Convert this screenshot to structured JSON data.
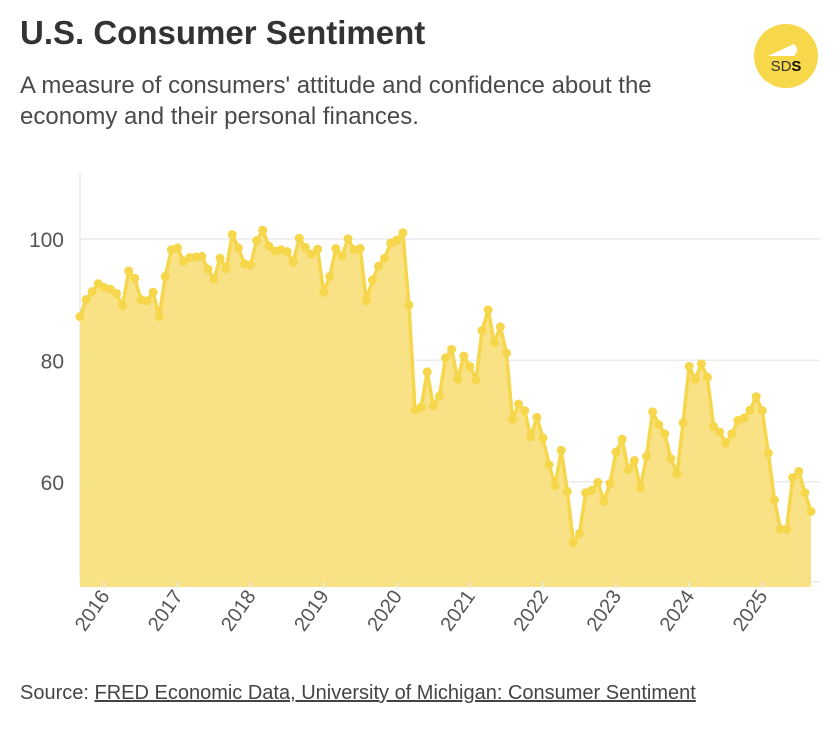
{
  "header": {
    "title": "U.S. Consumer Sentiment",
    "subtitle": "A measure of consumers' attitude and confidence about the economy and their personal finances.",
    "logo_text": "SDS"
  },
  "footer": {
    "source_prefix": "Source: ",
    "source_link": "FRED Economic Data, University of Michigan: Consumer Sentiment"
  },
  "colors": {
    "fill": "#f9e07f",
    "line": "#f6d64a",
    "grid": "#ebebeb",
    "logo": "#f7d84a"
  },
  "chart_data": {
    "type": "area",
    "title": "U.S. Consumer Sentiment",
    "xlabel": "",
    "ylabel": "",
    "frequency": "monthly",
    "start": "2015-09",
    "end": "2025-09",
    "x_ticks": [
      "2016",
      "2017",
      "2018",
      "2019",
      "2020",
      "2021",
      "2022",
      "2023",
      "2024",
      "2025"
    ],
    "y_ticks": [
      60,
      80,
      100
    ],
    "ylim": [
      43.5,
      111
    ],
    "grid": "horizontal",
    "legend": "none",
    "values": [
      87.2,
      90.0,
      91.3,
      92.6,
      92.0,
      91.7,
      91.0,
      89.0,
      94.7,
      93.5,
      90.0,
      89.8,
      91.2,
      87.2,
      93.8,
      98.2,
      98.5,
      96.3,
      96.9,
      97.0,
      97.1,
      95.0,
      93.4,
      96.8,
      95.1,
      100.7,
      98.5,
      95.9,
      95.7,
      99.7,
      101.4,
      98.8,
      98.0,
      98.2,
      97.9,
      96.2,
      100.1,
      98.6,
      97.5,
      98.3,
      91.2,
      93.8,
      98.4,
      97.2,
      100.0,
      98.2,
      98.4,
      89.8,
      93.2,
      95.5,
      96.8,
      99.3,
      99.8,
      101.0,
      89.1,
      71.8,
      72.3,
      78.1,
      72.5,
      74.1,
      80.4,
      81.8,
      76.9,
      80.7,
      79.0,
      76.8,
      84.9,
      88.3,
      82.9,
      85.5,
      81.2,
      70.3,
      72.8,
      71.7,
      67.4,
      70.6,
      67.2,
      62.8,
      59.4,
      65.2,
      58.4,
      50.0,
      51.5,
      58.2,
      58.6,
      59.9,
      56.8,
      59.7,
      64.9,
      67.0,
      62.0,
      63.5,
      59.0,
      64.2,
      71.5,
      69.4,
      67.9,
      63.8,
      61.3,
      69.7,
      79.0,
      76.9,
      79.4,
      77.2,
      69.1,
      68.2,
      66.4,
      67.9,
      70.1,
      70.5,
      71.8,
      74.0,
      71.7,
      64.7,
      57.0,
      52.2,
      52.2,
      60.7,
      61.7,
      58.2,
      55.1
    ]
  }
}
